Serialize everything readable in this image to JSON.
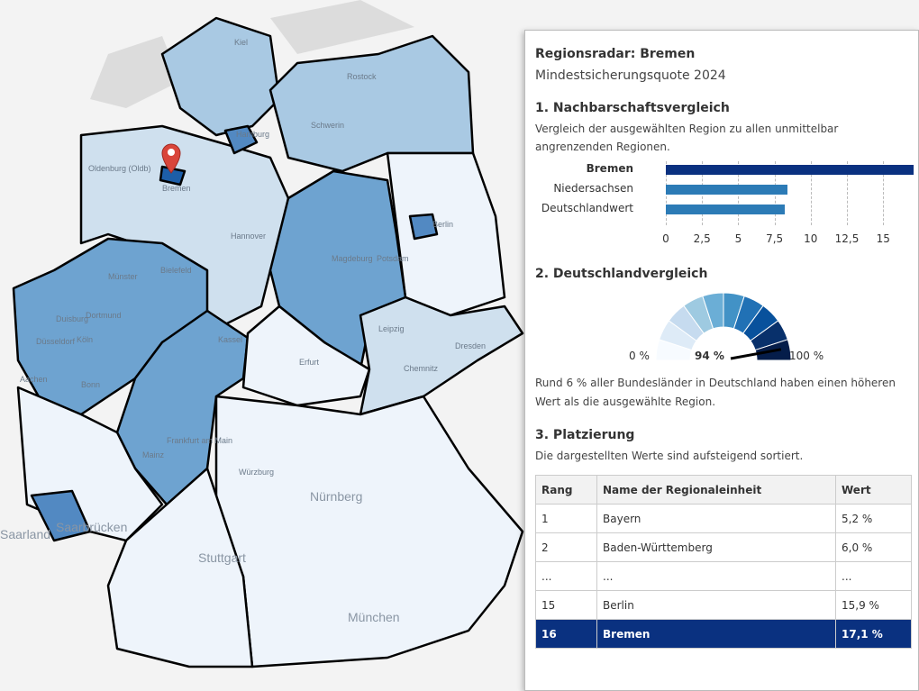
{
  "map": {
    "labels": [
      "Hamburg",
      "Bremen",
      "Hannover",
      "Berlin",
      "Leipzig",
      "Dresden",
      "Köln",
      "Dortmund",
      "Düsseldorf",
      "Duisburg",
      "Münster",
      "Bielefeld",
      "Kassel",
      "Erfurt",
      "Magdeburg",
      "Frankfurt am Main",
      "Nürnberg",
      "Stuttgart",
      "München",
      "Saarbrücken",
      "Saarland",
      "Aachen",
      "Bonn",
      "Schwerin",
      "Potsdam",
      "Chemnitz",
      "Mainz",
      "Würzburg",
      "Oldenburg (Oldb)",
      "Kiel",
      "Rostock"
    ],
    "state_colors": {
      "very_light": "#eef4fb",
      "light": "#cfe0ee",
      "mid": "#a9c9e3",
      "strong": "#6ea3d0",
      "dark": "#4f86c0"
    }
  },
  "panel": {
    "title": "Regionsradar: Bremen",
    "subtitle": "Mindestsicherungsquote 2024",
    "s1": {
      "heading": "1. Nachbarschaftsvergleich",
      "text": "Vergleich der ausgewählten Region zu allen unmittelbar angrenzenden Regionen."
    },
    "s2": {
      "heading": "2. Deutschlandvergleich",
      "min_label": "0 %",
      "max_label": "100 %",
      "value_label": "94 %",
      "text": "Rund 6 % aller Bundesländer in Deutschland haben einen höheren Wert als die ausgewählte Region."
    },
    "s3": {
      "heading": "3. Platzierung",
      "text": "Die dargestellten Werte sind aufsteigend sortiert.",
      "headers": [
        "Rang",
        "Name der Regionaleinheit",
        "Wert"
      ],
      "rows": [
        [
          "1",
          "Bayern",
          "5,2 %"
        ],
        [
          "2",
          "Baden-Württemberg",
          "6,0 %"
        ],
        [
          "...",
          "...",
          "..."
        ],
        [
          "15",
          "Berlin",
          "15,9 %"
        ],
        [
          "16",
          "Bremen",
          "17,1 %"
        ]
      ]
    }
  },
  "chart_data": [
    {
      "type": "bar",
      "orientation": "horizontal",
      "categories": [
        "Bremen",
        "Niedersachsen",
        "Deutschlandwert"
      ],
      "values": [
        17.1,
        8.4,
        8.2
      ],
      "colors": [
        "#0a3180",
        "#2c7bb6",
        "#2c7bb6"
      ],
      "xlim": [
        0,
        17.1
      ],
      "xticks": [
        "0",
        "2,5",
        "5",
        "7,5",
        "10",
        "12,5",
        "15"
      ],
      "grid": true
    },
    {
      "type": "gauge",
      "value_percent": 94,
      "segments": 10,
      "colors": [
        "#f7fbff",
        "#deebf7",
        "#c6dbef",
        "#9ecae1",
        "#6baed6",
        "#4292c6",
        "#2171b5",
        "#08519c",
        "#08306b",
        "#051d4a"
      ]
    }
  ]
}
